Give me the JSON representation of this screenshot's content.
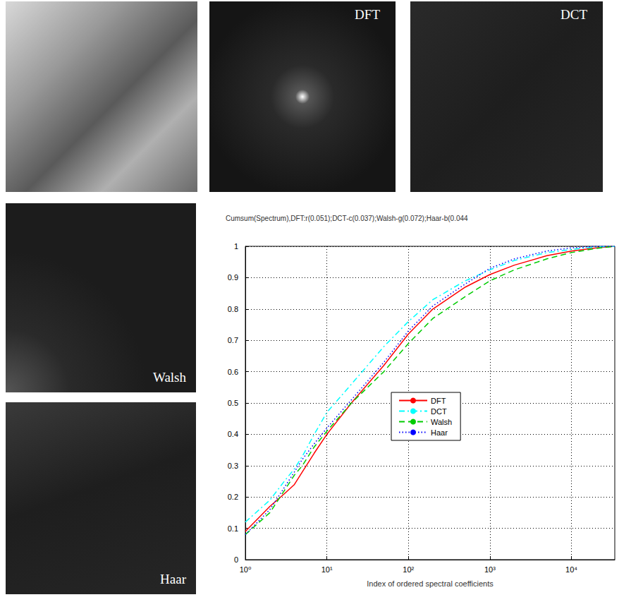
{
  "panels": [
    {
      "label": "DFT"
    },
    {
      "label": "DCT"
    },
    {
      "label": "Walsh"
    },
    {
      "label": "Haar"
    }
  ],
  "chart_data": {
    "type": "line",
    "title": "Cumsum(Spectrum),DFT:r(0.051);DCT-c(0.037);Walsh-g(0.072);Haar-b(0.044",
    "x_label": "Index of ordered spectral coefficients",
    "log": "x",
    "grid": true,
    "legend": "center",
    "x": [
      1,
      2,
      3,
      4,
      5,
      7,
      10,
      20,
      50,
      100,
      200,
      500,
      1000,
      2000,
      5000,
      10000,
      20000,
      34000
    ],
    "xlim": [
      1,
      34000
    ],
    "xticks": [
      {
        "value": 1,
        "label": "10⁰"
      },
      {
        "value": 10,
        "label": "10¹"
      },
      {
        "value": 100,
        "label": "10²"
      },
      {
        "value": 1000,
        "label": "10³"
      },
      {
        "value": 10000,
        "label": "10⁴"
      }
    ],
    "ylim": [
      0,
      1
    ],
    "yticks": [
      0,
      0.1,
      0.2,
      0.3,
      0.4,
      0.5,
      0.6,
      0.7,
      0.8,
      0.9,
      1
    ],
    "series": [
      {
        "name": "DFT",
        "color": "#ff0000",
        "line_style": "solid",
        "values": [
          0.09,
          0.17,
          0.21,
          0.24,
          0.28,
          0.34,
          0.4,
          0.5,
          0.62,
          0.72,
          0.8,
          0.87,
          0.91,
          0.94,
          0.97,
          0.985,
          0.995,
          1.0
        ]
      },
      {
        "name": "DCT",
        "color": "#00ffff",
        "line_style": "dashdot",
        "values": [
          0.12,
          0.19,
          0.25,
          0.29,
          0.33,
          0.4,
          0.47,
          0.56,
          0.68,
          0.76,
          0.83,
          0.89,
          0.925,
          0.955,
          0.98,
          0.99,
          0.998,
          1.0
        ]
      },
      {
        "name": "Walsh",
        "color": "#00cc00",
        "line_style": "dashed",
        "values": [
          0.08,
          0.15,
          0.22,
          0.27,
          0.3,
          0.36,
          0.41,
          0.5,
          0.6,
          0.69,
          0.77,
          0.84,
          0.89,
          0.925,
          0.96,
          0.98,
          0.993,
          1.0
        ]
      },
      {
        "name": "Haar",
        "color": "#0000ff",
        "line_style": "dotted",
        "values": [
          0.08,
          0.16,
          0.23,
          0.28,
          0.32,
          0.37,
          0.42,
          0.51,
          0.63,
          0.73,
          0.81,
          0.88,
          0.93,
          0.96,
          0.985,
          0.995,
          1.0,
          1.0
        ]
      }
    ]
  }
}
